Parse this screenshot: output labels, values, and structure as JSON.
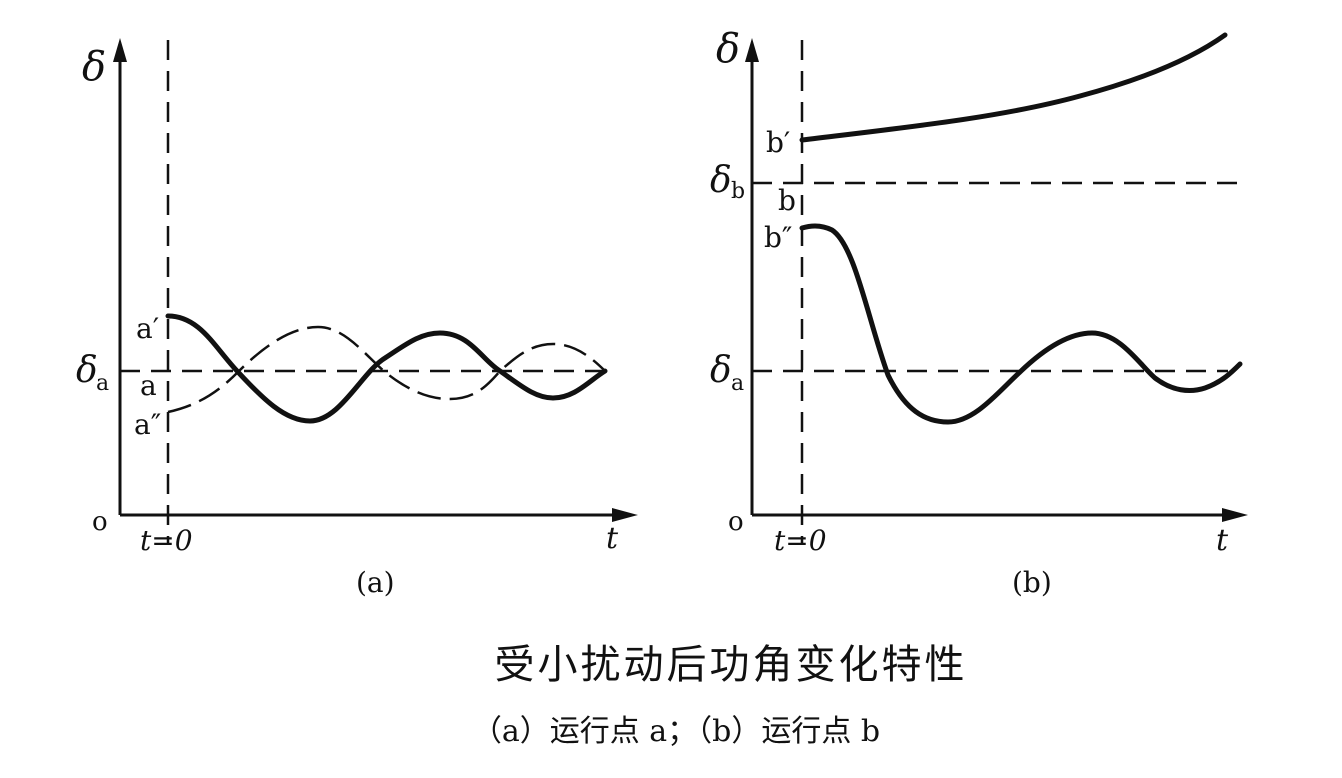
{
  "panel_a": {
    "y_axis_label": "δ",
    "origin_label": "o",
    "x_axis_label": "t",
    "t0_label": "t=0",
    "delta_a_symbol": "δ",
    "delta_a_sub": "a",
    "point_a_prime": "a′",
    "point_a": "a",
    "point_a_double_prime": "a″",
    "panel_label": "(a)"
  },
  "panel_b": {
    "y_axis_label": "δ",
    "origin_label": "o",
    "x_axis_label": "t",
    "t0_label": "t=0",
    "delta_b_symbol": "δ",
    "delta_b_sub": "b",
    "delta_a_symbol": "δ",
    "delta_a_sub": "a",
    "point_b_prime": "b′",
    "point_b": "b",
    "point_b_double_prime": "b″",
    "panel_label": "(b)"
  },
  "caption": {
    "title": "受小扰动后功角变化特性",
    "subtitle": "（a）运行点 a；（b）运行点 b"
  }
}
